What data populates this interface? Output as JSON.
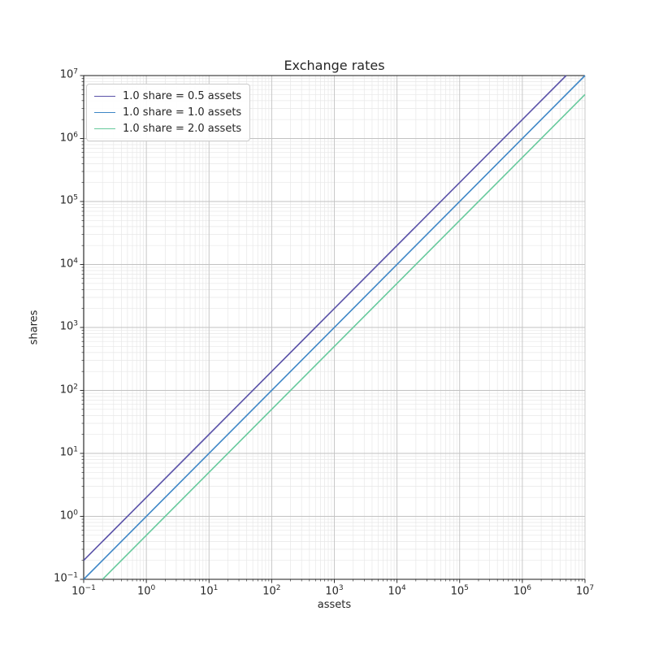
{
  "chart_data": {
    "type": "line",
    "title": "Exchange rates",
    "xlabel": "assets",
    "ylabel": "shares",
    "xscale": "log",
    "yscale": "log",
    "xlim": [
      0.1,
      10000000
    ],
    "ylim": [
      0.1,
      10000000
    ],
    "x_tick_exponents": [
      -1,
      0,
      1,
      2,
      3,
      4,
      5,
      6,
      7
    ],
    "y_tick_exponents": [
      -1,
      0,
      1,
      2,
      3,
      4,
      5,
      6,
      7
    ],
    "grid": "both",
    "legend_position": "upper-left",
    "series": [
      {
        "name": "1.0 share = 0.5 assets",
        "color": "#5a52a8",
        "assets_per_share": 0.5,
        "shares_per_asset": 2.0,
        "line_from": [
          0.1,
          0.2
        ],
        "line_to": [
          5000000,
          10000000
        ]
      },
      {
        "name": "1.0 share = 1.0 assets",
        "color": "#3d86c6",
        "assets_per_share": 1.0,
        "shares_per_asset": 1.0,
        "line_from": [
          0.1,
          0.1
        ],
        "line_to": [
          10000000,
          10000000
        ]
      },
      {
        "name": "1.0 share = 2.0 assets",
        "color": "#66c99c",
        "assets_per_share": 2.0,
        "shares_per_asset": 0.5,
        "line_from": [
          0.2,
          0.1
        ],
        "line_to": [
          10000000,
          5000000
        ]
      }
    ]
  },
  "style": {
    "background": "#ffffff",
    "spine_color": "#1a1a1a",
    "major_grid_color": "#c2c2c2",
    "minor_grid_color": "#e7e7e7",
    "text_color": "#262626",
    "legend_border_color": "#cccccc",
    "legend_background": "#ffffff",
    "line_width": 1.6
  }
}
